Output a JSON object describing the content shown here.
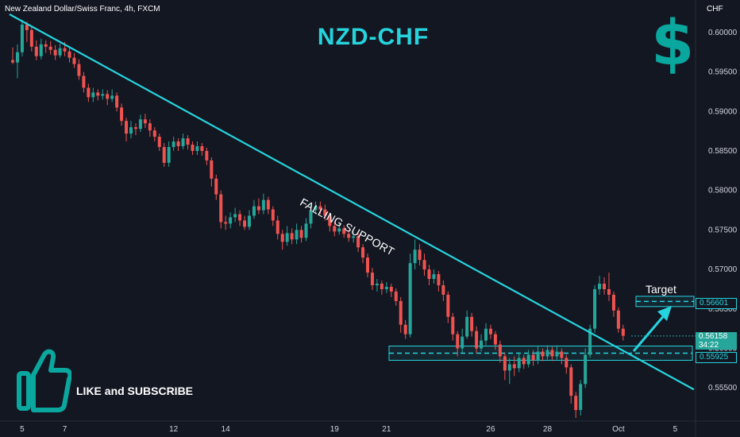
{
  "header": {
    "symbol": "New Zealand Dollar/Swiss Franc, 4h, FXCM",
    "currency": "CHF"
  },
  "title": "NZD-CHF",
  "annotations": {
    "trendline_label": "FALLING SUPPORT",
    "target_label": "Target",
    "like_label": "LIKE and SUBSCRIBE",
    "dollar_glyph": "$"
  },
  "price_tags": {
    "target": "0.56601",
    "last_price": "0.56158",
    "countdown": "34:22",
    "support": "0.55925"
  },
  "colors": {
    "background": "#131722",
    "bull": "#26a69a",
    "bear": "#ef5350",
    "accent": "#26d4de",
    "thumb": "#0aa79e"
  },
  "chart_data": {
    "type": "candlestick",
    "timeframe": "4h",
    "y_axis": {
      "ticks": [
        "0.60000",
        "0.59500",
        "0.59000",
        "0.58500",
        "0.58000",
        "0.57500",
        "0.57000",
        "0.56500",
        "0.56000",
        "0.55500"
      ],
      "ylim": [
        0.5508,
        0.6023
      ]
    },
    "x_axis": {
      "ticks": [
        "5",
        "7",
        "12",
        "14",
        "19",
        "21",
        "26",
        "28",
        "Oct",
        "5"
      ]
    },
    "trendline": {
      "from": [
        "Sep 4",
        0.6018
      ],
      "to": [
        "Oct 6",
        0.5545
      ]
    },
    "support_zone": [
      0.5585,
      0.5603
    ],
    "target_zone": [
      0.5653,
      0.5666
    ],
    "candles": [
      [
        0.5965,
        0.5962,
        0.5981,
        0.596
      ],
      [
        0.5962,
        0.5975,
        0.5985,
        0.5942
      ],
      [
        0.5975,
        0.601,
        0.6016,
        0.597
      ],
      [
        0.601,
        0.6003,
        0.6014,
        0.5988
      ],
      [
        0.6003,
        0.5982,
        0.6008,
        0.5976
      ],
      [
        0.5982,
        0.597,
        0.599,
        0.5965
      ],
      [
        0.597,
        0.5985,
        0.5992,
        0.5966
      ],
      [
        0.5985,
        0.5982,
        0.599,
        0.5974
      ],
      [
        0.5982,
        0.5978,
        0.5989,
        0.5972
      ],
      [
        0.5978,
        0.5971,
        0.5984,
        0.5965
      ],
      [
        0.5971,
        0.598,
        0.5986,
        0.5968
      ],
      [
        0.598,
        0.5976,
        0.5988,
        0.597
      ],
      [
        0.5976,
        0.5968,
        0.5981,
        0.5962
      ],
      [
        0.5968,
        0.596,
        0.5974,
        0.5955
      ],
      [
        0.596,
        0.5945,
        0.5966,
        0.594
      ],
      [
        0.5945,
        0.593,
        0.595,
        0.5924
      ],
      [
        0.593,
        0.5918,
        0.5935,
        0.5912
      ],
      [
        0.5918,
        0.5924,
        0.593,
        0.5912
      ],
      [
        0.5924,
        0.592,
        0.5928,
        0.5914
      ],
      [
        0.592,
        0.5922,
        0.5928,
        0.5915
      ],
      [
        0.5922,
        0.5916,
        0.5927,
        0.5908
      ],
      [
        0.5916,
        0.592,
        0.5928,
        0.5912
      ],
      [
        0.592,
        0.5905,
        0.5924,
        0.59
      ],
      [
        0.5905,
        0.5888,
        0.591,
        0.5882
      ],
      [
        0.5888,
        0.5872,
        0.5892,
        0.5862
      ],
      [
        0.5872,
        0.588,
        0.5888,
        0.5866
      ],
      [
        0.588,
        0.5878,
        0.5885,
        0.587
      ],
      [
        0.5878,
        0.589,
        0.5896,
        0.5874
      ],
      [
        0.589,
        0.5885,
        0.5897,
        0.5879
      ],
      [
        0.5885,
        0.5876,
        0.589,
        0.5868
      ],
      [
        0.5876,
        0.5868,
        0.588,
        0.5862
      ],
      [
        0.5868,
        0.5855,
        0.5872,
        0.585
      ],
      [
        0.5855,
        0.5835,
        0.586,
        0.583
      ],
      [
        0.5835,
        0.5855,
        0.5862,
        0.583
      ],
      [
        0.5855,
        0.5862,
        0.5868,
        0.585
      ],
      [
        0.5862,
        0.5856,
        0.5866,
        0.585
      ],
      [
        0.5856,
        0.5866,
        0.5872,
        0.5852
      ],
      [
        0.5866,
        0.5858,
        0.587,
        0.5852
      ],
      [
        0.5858,
        0.585,
        0.5862,
        0.5845
      ],
      [
        0.585,
        0.5856,
        0.5862,
        0.5845
      ],
      [
        0.5856,
        0.585,
        0.586,
        0.5844
      ],
      [
        0.585,
        0.5838,
        0.5854,
        0.5832
      ],
      [
        0.5838,
        0.5815,
        0.5842,
        0.5805
      ],
      [
        0.5815,
        0.5795,
        0.582,
        0.5788
      ],
      [
        0.5795,
        0.576,
        0.58,
        0.5752
      ],
      [
        0.576,
        0.5758,
        0.5768,
        0.575
      ],
      [
        0.5758,
        0.5766,
        0.5772,
        0.5752
      ],
      [
        0.5766,
        0.577,
        0.5778,
        0.576
      ],
      [
        0.577,
        0.5762,
        0.5775,
        0.5755
      ],
      [
        0.5762,
        0.5754,
        0.5768,
        0.575
      ],
      [
        0.5754,
        0.5768,
        0.5775,
        0.575
      ],
      [
        0.5768,
        0.578,
        0.5788,
        0.5764
      ],
      [
        0.578,
        0.5775,
        0.579,
        0.577
      ],
      [
        0.5775,
        0.5788,
        0.5796,
        0.577
      ],
      [
        0.5788,
        0.5776,
        0.5792,
        0.577
      ],
      [
        0.5776,
        0.5762,
        0.578,
        0.5755
      ],
      [
        0.5762,
        0.5745,
        0.5768,
        0.5738
      ],
      [
        0.5745,
        0.5735,
        0.575,
        0.5725
      ],
      [
        0.5735,
        0.5746,
        0.5755,
        0.573
      ],
      [
        0.5746,
        0.5738,
        0.5752,
        0.5732
      ],
      [
        0.5738,
        0.575,
        0.5758,
        0.5732
      ],
      [
        0.575,
        0.574,
        0.5755,
        0.5734
      ],
      [
        0.574,
        0.5758,
        0.5765,
        0.5736
      ],
      [
        0.5758,
        0.5775,
        0.5782,
        0.5752
      ],
      [
        0.5775,
        0.578,
        0.5786,
        0.577
      ],
      [
        0.578,
        0.5776,
        0.5786,
        0.577
      ],
      [
        0.5776,
        0.5768,
        0.5782,
        0.5762
      ],
      [
        0.5768,
        0.5755,
        0.5772,
        0.5748
      ],
      [
        0.5755,
        0.5748,
        0.576,
        0.5742
      ],
      [
        0.5748,
        0.5752,
        0.5758,
        0.5744
      ],
      [
        0.5752,
        0.5745,
        0.5756,
        0.574
      ],
      [
        0.5745,
        0.574,
        0.575,
        0.5735
      ],
      [
        0.574,
        0.5742,
        0.5748,
        0.5734
      ],
      [
        0.5742,
        0.5728,
        0.5746,
        0.5722
      ],
      [
        0.5728,
        0.5715,
        0.5732,
        0.5708
      ],
      [
        0.5715,
        0.5696,
        0.572,
        0.569
      ],
      [
        0.5696,
        0.568,
        0.5702,
        0.5674
      ],
      [
        0.568,
        0.5682,
        0.5688,
        0.5672
      ],
      [
        0.5682,
        0.5675,
        0.5686,
        0.5668
      ],
      [
        0.5675,
        0.5678,
        0.5684,
        0.567
      ],
      [
        0.5678,
        0.5672,
        0.5682,
        0.5665
      ],
      [
        0.5672,
        0.566,
        0.5676,
        0.5654
      ],
      [
        0.566,
        0.563,
        0.5665,
        0.562
      ],
      [
        0.563,
        0.5618,
        0.5636,
        0.5612
      ],
      [
        0.5618,
        0.5708,
        0.572,
        0.5614
      ],
      [
        0.5708,
        0.5725,
        0.5738,
        0.57
      ],
      [
        0.5725,
        0.5712,
        0.5732,
        0.5705
      ],
      [
        0.5712,
        0.57,
        0.572,
        0.5692
      ],
      [
        0.57,
        0.5688,
        0.5706,
        0.568
      ],
      [
        0.5688,
        0.5694,
        0.57,
        0.5682
      ],
      [
        0.5694,
        0.568,
        0.5698,
        0.5672
      ],
      [
        0.568,
        0.5668,
        0.5686,
        0.566
      ],
      [
        0.5668,
        0.564,
        0.5672,
        0.5632
      ],
      [
        0.564,
        0.5618,
        0.5645,
        0.561
      ],
      [
        0.5618,
        0.56,
        0.5622,
        0.559
      ],
      [
        0.56,
        0.5615,
        0.5625,
        0.5594
      ],
      [
        0.5615,
        0.564,
        0.5648,
        0.5612
      ],
      [
        0.564,
        0.5622,
        0.5645,
        0.5615
      ],
      [
        0.5622,
        0.56,
        0.5628,
        0.5594
      ],
      [
        0.56,
        0.561,
        0.5618,
        0.5596
      ],
      [
        0.561,
        0.5625,
        0.5632,
        0.5604
      ],
      [
        0.5625,
        0.5618,
        0.563,
        0.5612
      ],
      [
        0.5618,
        0.5605,
        0.5622,
        0.5598
      ],
      [
        0.5605,
        0.559,
        0.561,
        0.5582
      ],
      [
        0.559,
        0.5572,
        0.5595,
        0.556
      ],
      [
        0.5572,
        0.558,
        0.5588,
        0.5555
      ],
      [
        0.558,
        0.5575,
        0.559,
        0.5565
      ],
      [
        0.5575,
        0.5588,
        0.5595,
        0.557
      ],
      [
        0.5588,
        0.558,
        0.5592,
        0.5574
      ],
      [
        0.558,
        0.5592,
        0.5598,
        0.5576
      ],
      [
        0.5592,
        0.5585,
        0.5598,
        0.5578
      ],
      [
        0.5585,
        0.5596,
        0.5602,
        0.558
      ],
      [
        0.5596,
        0.559,
        0.56,
        0.5584
      ],
      [
        0.559,
        0.5598,
        0.5604,
        0.5586
      ],
      [
        0.5598,
        0.559,
        0.5602,
        0.5584
      ],
      [
        0.559,
        0.5596,
        0.5604,
        0.5586
      ],
      [
        0.5596,
        0.5588,
        0.56,
        0.558
      ],
      [
        0.5588,
        0.5576,
        0.5592,
        0.5568
      ],
      [
        0.5576,
        0.554,
        0.558,
        0.553
      ],
      [
        0.554,
        0.5522,
        0.5545,
        0.5512
      ],
      [
        0.5522,
        0.5555,
        0.556,
        0.5515
      ],
      [
        0.5555,
        0.5592,
        0.56,
        0.555
      ],
      [
        0.5592,
        0.5625,
        0.563,
        0.5588
      ],
      [
        0.5625,
        0.5675,
        0.568,
        0.562
      ],
      [
        0.5675,
        0.5682,
        0.5692,
        0.5668
      ],
      [
        0.5682,
        0.5675,
        0.569,
        0.5668
      ],
      [
        0.5675,
        0.5668,
        0.5696,
        0.566
      ],
      [
        0.5668,
        0.5648,
        0.5672,
        0.564
      ],
      [
        0.5648,
        0.5625,
        0.5652,
        0.562
      ],
      [
        0.5625,
        0.5616,
        0.563,
        0.561
      ]
    ]
  }
}
